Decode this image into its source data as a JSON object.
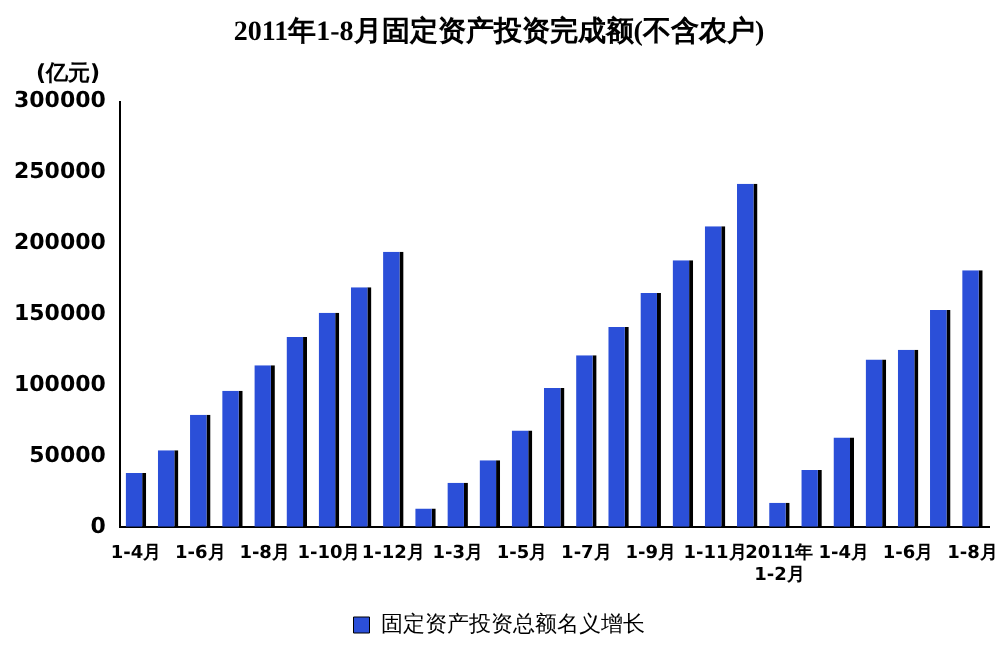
{
  "chart_data": {
    "type": "bar",
    "title": "2011年1-8月固定资产投资完成额(不含农户)",
    "ylabel": "(亿元)",
    "categories": [
      "1-4月",
      null,
      "1-6月",
      null,
      "1-8月",
      null,
      "1-10月",
      null,
      "1-12月",
      null,
      "1-3月",
      null,
      "1-5月",
      null,
      "1-7月",
      null,
      "1-9月",
      null,
      "1-11月",
      null,
      "2011年\n1-2月",
      null,
      "1-4月",
      null,
      "1-6月",
      null,
      "1-8月"
    ],
    "series": [
      {
        "name": "固定资产投资总额名义增长",
        "color": "#2b4fd8",
        "values": [
          38000,
          54000,
          79000,
          96000,
          114000,
          134000,
          151000,
          169000,
          194000,
          13000,
          31000,
          47000,
          68000,
          98000,
          121000,
          141000,
          165000,
          188000,
          212000,
          242000,
          17000,
          40000,
          63000,
          118000,
          125000,
          153000,
          181000
        ]
      }
    ],
    "ylim": [
      0,
      300000
    ],
    "yticks": [
      0,
      50000,
      100000,
      150000,
      200000,
      250000,
      300000
    ],
    "grid": false,
    "legend": "bottom"
  }
}
